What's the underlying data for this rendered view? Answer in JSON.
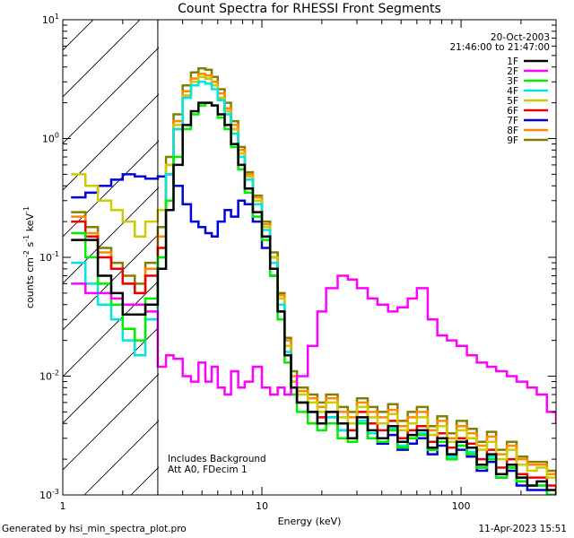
{
  "chart_data": {
    "type": "line",
    "title": "Count Spectra for RHESSI Front Segments",
    "xlabel": "Energy (keV)",
    "ylabel_parts": [
      "counts cm",
      "-2",
      " s",
      "-1",
      " keV",
      "-1"
    ],
    "x_scale": "log",
    "y_scale": "log",
    "xlim": [
      1,
      300
    ],
    "ylim": [
      0.001,
      10
    ],
    "x_ticks": [
      {
        "value": 1,
        "label": "1"
      },
      {
        "value": 10,
        "label": "10"
      },
      {
        "value": 100,
        "label": "100"
      }
    ],
    "y_ticks": [
      {
        "value": 10,
        "base": "10",
        "exp": "1"
      },
      {
        "value": 1,
        "base": "10",
        "exp": "0"
      },
      {
        "value": 0.1,
        "base": "10",
        "exp": "-1"
      },
      {
        "value": 0.01,
        "base": "10",
        "exp": "-2"
      },
      {
        "value": 0.001,
        "base": "10",
        "exp": "-3"
      }
    ],
    "date_label": "20-Oct-2003",
    "time_range_label": "21:46:00 to 21:47:00",
    "annotations": [
      "Includes Background",
      "Att A0, FDecim 1"
    ],
    "hatched_region_xmax": 3,
    "step_energies": [
      1.1,
      1.3,
      1.5,
      1.75,
      2.0,
      2.3,
      2.6,
      3.0,
      3.3,
      3.6,
      4.0,
      4.4,
      4.8,
      5.2,
      5.6,
      6.0,
      6.5,
      7.0,
      7.6,
      8.2,
      9.0,
      10,
      11,
      12,
      13,
      14,
      15,
      17,
      19,
      21,
      24,
      27,
      30,
      34,
      38,
      43,
      48,
      54,
      60,
      68,
      76,
      85,
      95,
      107,
      120,
      135,
      150,
      170,
      190,
      215,
      240,
      270,
      300
    ],
    "series": [
      {
        "name": "1F",
        "color": "#000000",
        "values": [
          0.14,
          0.14,
          0.07,
          0.05,
          0.033,
          0.033,
          0.04,
          0.08,
          0.25,
          0.6,
          1.3,
          1.7,
          2.0,
          2.0,
          1.9,
          1.6,
          1.3,
          0.9,
          0.6,
          0.38,
          0.24,
          0.15,
          0.08,
          0.035,
          0.015,
          0.008,
          0.006,
          0.005,
          0.004,
          0.005,
          0.004,
          0.003,
          0.0045,
          0.0035,
          0.003,
          0.0038,
          0.0028,
          0.0032,
          0.0035,
          0.0025,
          0.003,
          0.0022,
          0.0028,
          0.0025,
          0.0018,
          0.0022,
          0.0015,
          0.0018,
          0.0014,
          0.0012,
          0.0013,
          0.0011,
          0.001
        ]
      },
      {
        "name": "2F",
        "color": "#ff00ff",
        "values": [
          0.06,
          0.05,
          0.05,
          0.045,
          0.04,
          0.04,
          0.035,
          0.012,
          0.015,
          0.014,
          0.01,
          0.009,
          0.013,
          0.009,
          0.012,
          0.008,
          0.007,
          0.011,
          0.008,
          0.009,
          0.012,
          0.008,
          0.007,
          0.008,
          0.007,
          0.008,
          0.01,
          0.018,
          0.035,
          0.055,
          0.07,
          0.065,
          0.055,
          0.045,
          0.04,
          0.035,
          0.038,
          0.045,
          0.055,
          0.03,
          0.022,
          0.02,
          0.018,
          0.015,
          0.013,
          0.012,
          0.011,
          0.01,
          0.009,
          0.008,
          0.007,
          0.005,
          0.004
        ]
      },
      {
        "name": "3F",
        "color": "#00ee00",
        "values": [
          0.16,
          0.1,
          0.06,
          0.04,
          0.025,
          0.02,
          0.045,
          0.1,
          0.3,
          0.7,
          1.2,
          1.6,
          1.9,
          2.0,
          1.9,
          1.5,
          1.2,
          0.85,
          0.55,
          0.35,
          0.22,
          0.14,
          0.07,
          0.03,
          0.013,
          0.007,
          0.005,
          0.004,
          0.0035,
          0.004,
          0.003,
          0.0028,
          0.004,
          0.003,
          0.0028,
          0.0035,
          0.0025,
          0.003,
          0.0032,
          0.0024,
          0.0028,
          0.002,
          0.0026,
          0.0022,
          0.0017,
          0.002,
          0.0014,
          0.0017,
          0.0013,
          0.0012,
          0.0012,
          0.001,
          0.001
        ]
      },
      {
        "name": "4F",
        "color": "#00e5e5",
        "values": [
          0.09,
          0.06,
          0.04,
          0.03,
          0.02,
          0.015,
          0.03,
          0.1,
          0.5,
          1.2,
          2.2,
          2.8,
          3.0,
          2.9,
          2.6,
          2.1,
          1.6,
          1.1,
          0.7,
          0.45,
          0.28,
          0.17,
          0.09,
          0.04,
          0.016,
          0.008,
          0.006,
          0.005,
          0.004,
          0.0045,
          0.0035,
          0.003,
          0.0042,
          0.0033,
          0.003,
          0.0036,
          0.0026,
          0.003,
          0.0033,
          0.0024,
          0.0028,
          0.0021,
          0.0026,
          0.0023,
          0.0017,
          0.0021,
          0.0015,
          0.0017,
          0.0013,
          0.0012,
          0.0012,
          0.001,
          0.001
        ]
      },
      {
        "name": "5F",
        "color": "#cccc00",
        "values": [
          0.5,
          0.4,
          0.3,
          0.25,
          0.2,
          0.15,
          0.2,
          0.25,
          0.6,
          1.3,
          2.3,
          3.0,
          3.3,
          3.2,
          2.8,
          2.2,
          1.7,
          1.2,
          0.75,
          0.48,
          0.3,
          0.18,
          0.1,
          0.045,
          0.018,
          0.009,
          0.007,
          0.006,
          0.005,
          0.006,
          0.0045,
          0.004,
          0.0055,
          0.0045,
          0.004,
          0.0048,
          0.0035,
          0.004,
          0.0045,
          0.0032,
          0.0038,
          0.0028,
          0.0035,
          0.003,
          0.0024,
          0.0028,
          0.002,
          0.0024,
          0.0018,
          0.0016,
          0.0017,
          0.0014,
          0.0013
        ]
      },
      {
        "name": "6F",
        "color": "#ee0000",
        "values": [
          0.2,
          0.15,
          0.1,
          0.08,
          0.06,
          0.05,
          0.07,
          0.12,
          0.5,
          1.2,
          2.3,
          3.0,
          3.3,
          3.2,
          2.8,
          2.2,
          1.7,
          1.2,
          0.75,
          0.48,
          0.3,
          0.18,
          0.1,
          0.045,
          0.018,
          0.009,
          0.006,
          0.005,
          0.0045,
          0.005,
          0.004,
          0.0035,
          0.005,
          0.004,
          0.0035,
          0.0042,
          0.003,
          0.0035,
          0.0038,
          0.0028,
          0.0033,
          0.0025,
          0.003,
          0.0027,
          0.002,
          0.0024,
          0.0017,
          0.002,
          0.0015,
          0.0014,
          0.0014,
          0.0012,
          0.0011
        ]
      },
      {
        "name": "7F",
        "color": "#0000dd",
        "values": [
          0.32,
          0.35,
          0.4,
          0.45,
          0.5,
          0.48,
          0.46,
          0.48,
          0.5,
          0.4,
          0.28,
          0.2,
          0.18,
          0.16,
          0.15,
          0.2,
          0.25,
          0.22,
          0.3,
          0.28,
          0.2,
          0.12,
          0.07,
          0.035,
          0.015,
          0.008,
          0.006,
          0.005,
          0.004,
          0.0045,
          0.0035,
          0.003,
          0.004,
          0.003,
          0.0027,
          0.0032,
          0.0024,
          0.0027,
          0.003,
          0.0022,
          0.0026,
          0.002,
          0.0024,
          0.0021,
          0.0016,
          0.0019,
          0.0014,
          0.0016,
          0.0012,
          0.0011,
          0.0011,
          0.001,
          0.001
        ]
      },
      {
        "name": "8F",
        "color": "#ff8800",
        "values": [
          0.22,
          0.16,
          0.11,
          0.08,
          0.06,
          0.05,
          0.08,
          0.15,
          0.6,
          1.4,
          2.5,
          3.2,
          3.5,
          3.4,
          3.0,
          2.4,
          1.8,
          1.3,
          0.8,
          0.5,
          0.32,
          0.19,
          0.1,
          0.048,
          0.02,
          0.01,
          0.0075,
          0.0065,
          0.0055,
          0.0065,
          0.005,
          0.0045,
          0.006,
          0.005,
          0.0045,
          0.0052,
          0.0038,
          0.0045,
          0.005,
          0.0035,
          0.0042,
          0.003,
          0.0038,
          0.0033,
          0.0026,
          0.0031,
          0.0022,
          0.0026,
          0.002,
          0.0018,
          0.0018,
          0.0015,
          0.0014
        ]
      },
      {
        "name": "9F",
        "color": "#808000",
        "values": [
          0.24,
          0.18,
          0.12,
          0.09,
          0.07,
          0.06,
          0.09,
          0.18,
          0.7,
          1.6,
          2.8,
          3.6,
          3.9,
          3.8,
          3.3,
          2.6,
          2.0,
          1.4,
          0.85,
          0.52,
          0.33,
          0.2,
          0.11,
          0.05,
          0.021,
          0.011,
          0.008,
          0.007,
          0.006,
          0.007,
          0.0055,
          0.005,
          0.0065,
          0.0055,
          0.005,
          0.0058,
          0.0042,
          0.005,
          0.0055,
          0.0038,
          0.0046,
          0.0033,
          0.0042,
          0.0036,
          0.0028,
          0.0034,
          0.0024,
          0.0028,
          0.0021,
          0.0019,
          0.0019,
          0.0016,
          0.0015
        ]
      }
    ]
  },
  "footer": {
    "generated_by": "Generated by hsi_min_spectra_plot.pro",
    "timestamp": "11-Apr-2023 15:51"
  }
}
